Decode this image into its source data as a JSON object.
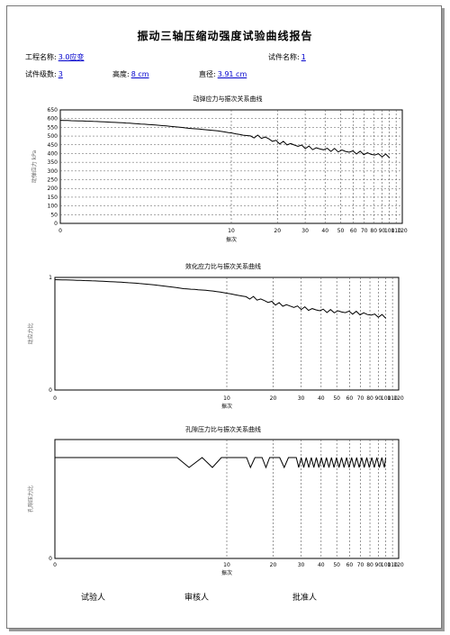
{
  "report": {
    "title": "振动三轴压缩动强度试验曲线报告",
    "fields": {
      "project_label": "工程名称:",
      "project_value": "3.0应变",
      "specimen_name_label": "试件名称:",
      "specimen_name_value": "1",
      "level_label": "试件级数:",
      "level_value": "3",
      "height_label": "高度:",
      "height_value": "8 cm",
      "diameter_label": "直径:",
      "diameter_value": "3.91 cm"
    },
    "signatures": {
      "tester": "试验人",
      "reviewer": "审核人",
      "approver": "批准人"
    }
  },
  "chart_data": [
    {
      "type": "line",
      "title": "动弹应力与振次关系曲线",
      "xlabel": "振次",
      "ylabel": "动弹应力 kPa",
      "x_scale": "log1p",
      "xlim": [
        0,
        120
      ],
      "ylim": [
        0,
        650
      ],
      "xticks": [
        0,
        10,
        20,
        30,
        40,
        50,
        60,
        70,
        80,
        90,
        100,
        110,
        120
      ],
      "xtick_labels": [
        "0",
        "10",
        "20",
        "30",
        "40",
        "50",
        "60",
        "70",
        "80",
        "90",
        "100",
        "110",
        "120"
      ],
      "yticks": [
        0,
        50,
        100,
        150,
        200,
        250,
        300,
        350,
        400,
        450,
        500,
        550,
        600,
        650
      ],
      "series": [
        {
          "x": [
            0,
            2,
            5,
            8,
            12,
            17,
            19,
            22,
            27,
            33,
            45,
            60,
            80,
            100
          ],
          "y": [
            590,
            570,
            545,
            530,
            505,
            490,
            470,
            460,
            445,
            430,
            420,
            408,
            395,
            385
          ]
        }
      ]
    },
    {
      "type": "line",
      "title": "效化应力比与振次关系曲线",
      "xlabel": "振次",
      "ylabel": "动应力比",
      "x_scale": "log1p",
      "xlim": [
        0,
        120
      ],
      "ylim": [
        0,
        1
      ],
      "xticks": [
        0,
        10,
        20,
        30,
        40,
        50,
        60,
        70,
        80,
        90,
        100,
        110,
        120
      ],
      "xtick_labels": [
        "0",
        "10",
        "20",
        "30",
        "40",
        "50",
        "60",
        "70",
        "80",
        "90",
        "100",
        "110",
        "120"
      ],
      "yticks": [
        0,
        1
      ],
      "series": [
        {
          "x": [
            0,
            2,
            5,
            8,
            12,
            17,
            19,
            22,
            27,
            33,
            45,
            60,
            80,
            100
          ],
          "y": [
            0.98,
            0.95,
            0.9,
            0.88,
            0.84,
            0.8,
            0.78,
            0.76,
            0.74,
            0.72,
            0.7,
            0.69,
            0.67,
            0.65
          ]
        }
      ]
    },
    {
      "type": "line",
      "title": "孔隙压力比与振次关系曲线",
      "xlabel": "振次",
      "ylabel": "孔隙压力比",
      "x_scale": "log1p",
      "xlim": [
        0,
        120
      ],
      "xticks": [
        0,
        10,
        20,
        30,
        40,
        50,
        60,
        70,
        80,
        90,
        100,
        110,
        120
      ],
      "xtick_labels": [
        "0",
        "10",
        "20",
        "30",
        "40",
        "50",
        "60",
        "70",
        "80",
        "90",
        "100",
        "110",
        "120"
      ],
      "yticks": [],
      "series": [
        {
          "description_free": true,
          "pattern": "pore"
        }
      ]
    }
  ]
}
